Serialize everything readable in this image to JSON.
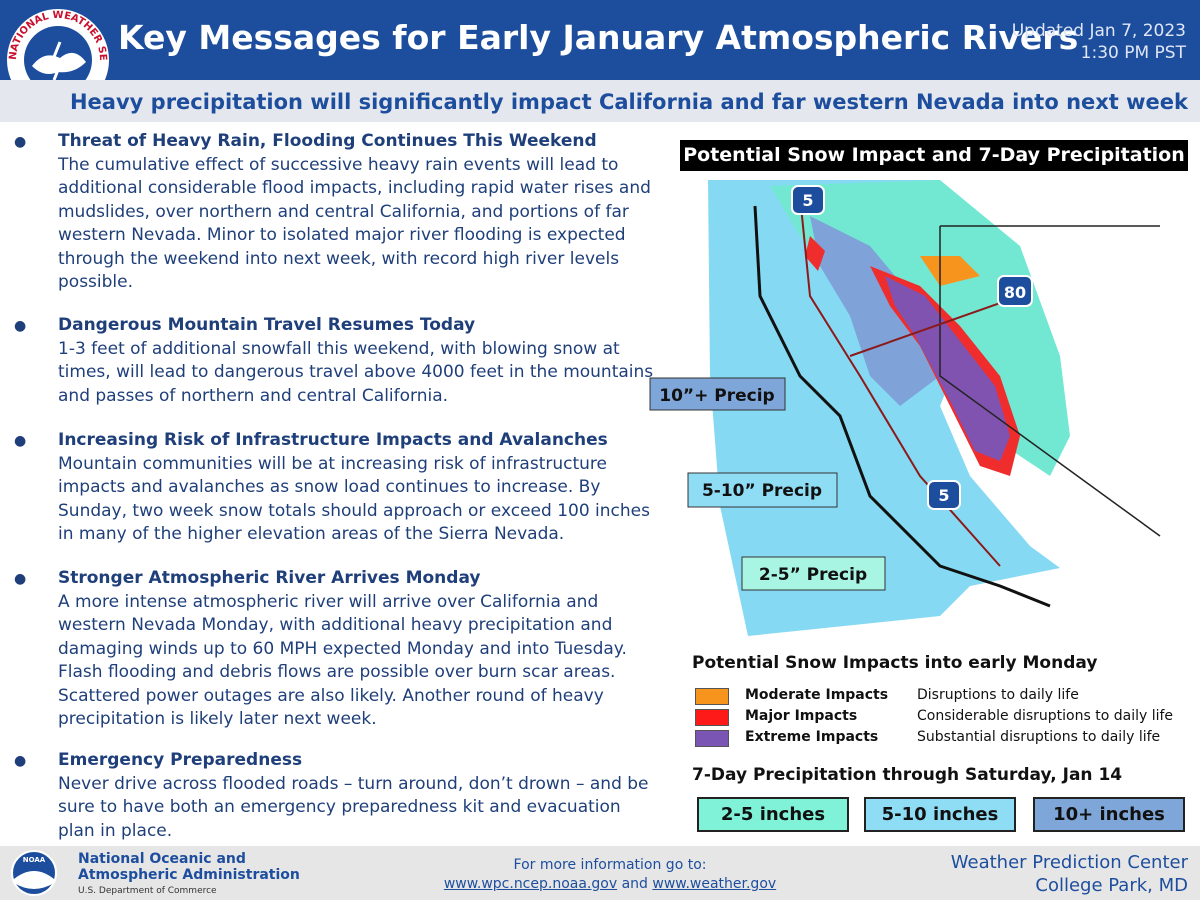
{
  "header": {
    "logo_text": "NATIONAL WEATHER SERVICE",
    "title": "Key Messages for Early January Atmospheric Rivers",
    "updated": [
      "Updated Jan 7, 2023",
      "1:30 PM PST"
    ],
    "subtitle": "Heavy precipitation will significantly impact California and far western Nevada into next week"
  },
  "messages": [
    {
      "heading": "Threat of Heavy Rain, Flooding Continues This Weekend",
      "body": "The cumulative effect of successive heavy rain events will lead to additional considerable flood impacts, including rapid water rises and mudslides, over northern and central California, and portions of far western Nevada. Minor to isolated major river flooding is expected through the weekend into next week, with record high river levels possible."
    },
    {
      "heading": "Dangerous Mountain Travel Resumes Today",
      "body": "1-3 feet of additional snowfall this weekend, with blowing snow at times, will lead to dangerous travel above 4000 feet in the mountains and passes of northern and central California."
    },
    {
      "heading": "Increasing Risk of Infrastructure Impacts and Avalanches",
      "body": "Mountain communities will be at increasing risk of infrastructure impacts and avalanches as snow load continues to increase. By Sunday, two week snow totals should approach or exceed 100 inches in many of the higher elevation areas of the Sierra Nevada."
    },
    {
      "heading": "Stronger Atmospheric River Arrives Monday",
      "body": "A more intense atmospheric river will arrive over California and western Nevada Monday, with additional heavy precipitation and damaging winds up to 60 MPH expected Monday and into Tuesday. Flash flooding and debris flows are possible over burn scar areas. Scattered power outages are also likely. Another round of heavy precipitation is likely later next week."
    },
    {
      "heading": "Emergency Preparedness",
      "body": "Never drive across flooded roads – turn around, don’t drown – and be sure to have both an emergency preparedness kit and evacuation plan in place."
    }
  ],
  "map": {
    "title": "Potential Snow Impact and 7-Day Precipitation",
    "precip_labels": [
      "10”+ Precip",
      "5-10” Precip",
      "2-5” Precip"
    ],
    "highways": [
      "5",
      "80",
      "5"
    ]
  },
  "snow_legend": {
    "title": "Potential Snow Impacts into early Monday",
    "items": [
      {
        "level": "Moderate Impacts",
        "description": "Disruptions to daily life"
      },
      {
        "level": "Major Impacts",
        "description": "Considerable disruptions to daily life"
      },
      {
        "level": "Extreme Impacts",
        "description": "Substantial disruptions to daily life"
      }
    ]
  },
  "precip_legend": {
    "title": "7-Day Precipitation through Saturday, Jan 14",
    "items": [
      "2-5 inches",
      "5-10 inches",
      "10+ inches"
    ]
  },
  "footer": {
    "noaa_logo": "NOAA",
    "noaa_name": [
      "National Oceanic and",
      "Atmospheric Administration"
    ],
    "noaa_dept": "U.S. Department of Commerce",
    "more_info": "For more information go to:",
    "links": [
      "www.wpc.ncep.noaa.gov",
      "and",
      "www.weather.gov"
    ],
    "center": [
      "Weather Prediction Center",
      "College Park, MD"
    ]
  }
}
